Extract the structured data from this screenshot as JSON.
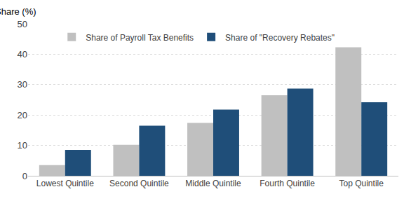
{
  "chart_data": {
    "type": "bar",
    "y_label": "Share (%)",
    "categories": [
      "Lowest Quintile",
      "Second Quintile",
      "Middle Quintile",
      "Fourth Quintile",
      "Top Quintile"
    ],
    "series": [
      {
        "name": "Share of Payroll Tax Benefits",
        "color": "#c0c0c0",
        "values": [
          3.5,
          10.2,
          17.4,
          26.5,
          42.3
        ]
      },
      {
        "name": "Share of \"Recovery Rebates\"",
        "color": "#1f4e79",
        "values": [
          8.5,
          16.5,
          21.8,
          28.7,
          24.2
        ]
      }
    ],
    "ylim": [
      0,
      50
    ],
    "yticks": [
      0,
      10,
      20,
      30,
      40,
      50
    ],
    "grid": true,
    "legend": "upper left"
  }
}
